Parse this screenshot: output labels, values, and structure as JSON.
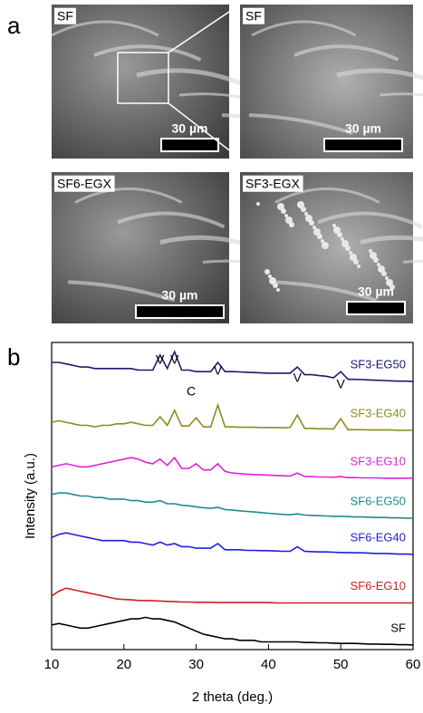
{
  "panel_a": {
    "label": "a",
    "images": [
      {
        "label": "SF",
        "scale_bar": "30 µm"
      },
      {
        "label": "SF",
        "scale_bar": "30 µm"
      },
      {
        "label": "SF6-EGX",
        "scale_bar": "30 µm"
      },
      {
        "label": "SF3-EGX",
        "scale_bar": "30 µm"
      }
    ]
  },
  "chart_data": {
    "type": "line",
    "panel_label": "b",
    "x_label": "2 theta (deg.)",
    "y_label": "Intensity (a.u.)",
    "xlim": [
      10,
      60
    ],
    "xticks": [
      10,
      20,
      30,
      40,
      50,
      60
    ],
    "ylim": [
      0,
      100
    ],
    "x": [
      10,
      11,
      12,
      13,
      14,
      15,
      16,
      17,
      18,
      19,
      20,
      21,
      22,
      23,
      24,
      25,
      26,
      27,
      28,
      29,
      30,
      31,
      32,
      33,
      34,
      35,
      36,
      37,
      38,
      39,
      40,
      41,
      42,
      43,
      44,
      45,
      46,
      47,
      48,
      49,
      50,
      51,
      52,
      53,
      54,
      55,
      56,
      57,
      58,
      59,
      60
    ],
    "series": [
      {
        "name": "SF3-EG50",
        "color": "#1a1a6e",
        "values": [
          93.5,
          93.5,
          93,
          92.5,
          92,
          92,
          91.5,
          91.5,
          91.5,
          91.5,
          91.5,
          91.5,
          91,
          91,
          91,
          95.9,
          91.5,
          97,
          91,
          91,
          90.5,
          90.5,
          90.5,
          93.5,
          90.5,
          90.5,
          90.4,
          90.3,
          90.2,
          90.1,
          90,
          90,
          90,
          90,
          92,
          89.5,
          89.5,
          89.2,
          89,
          88.5,
          90.5,
          88,
          88,
          87.9,
          87.8,
          87.7,
          87.6,
          87.5,
          87.4,
          87.4,
          87.3
        ]
      },
      {
        "name": "SF3-EG40",
        "color": "#8c8c1e",
        "values": [
          74,
          74.5,
          74,
          73.5,
          73,
          73,
          72.5,
          73,
          73,
          73.5,
          73.5,
          74,
          73.5,
          73,
          73,
          75.8,
          73,
          77.9,
          72.8,
          72.8,
          75.5,
          72.5,
          72.5,
          79.6,
          72.5,
          72.5,
          72.4,
          72.4,
          72.4,
          72.3,
          72.3,
          72.3,
          72.2,
          72.3,
          76.4,
          72,
          72,
          71.9,
          71.9,
          71.8,
          75.2,
          71.6,
          71.6,
          71.6,
          71.5,
          71.5,
          71.5,
          71.5,
          71.4,
          71.4,
          71.4
        ]
      },
      {
        "name": "SF3-EG10",
        "color": "#e020e0",
        "values": [
          59.5,
          60,
          60.5,
          60,
          59.5,
          59.5,
          60,
          60.5,
          61,
          61.5,
          62,
          62.5,
          62,
          61,
          60.5,
          62,
          60,
          62.5,
          59,
          59,
          60.5,
          58.5,
          58.5,
          60.5,
          58,
          57.5,
          57.3,
          57.1,
          57,
          56.9,
          56.8,
          56.7,
          56.6,
          56.5,
          57.5,
          56.4,
          56.3,
          56.2,
          56.2,
          56.1,
          56.3,
          56,
          56,
          55.9,
          55.9,
          55.9,
          55.8,
          55.8,
          55.8,
          55.8,
          55.8
        ]
      },
      {
        "name": "SF6-EG50",
        "color": "#1e8c8c",
        "values": [
          50.5,
          51,
          51,
          50.5,
          50,
          50,
          49.5,
          49.5,
          49,
          49,
          49,
          48.5,
          48.5,
          48,
          48,
          48.5,
          47.5,
          47.5,
          47,
          46.8,
          46.5,
          46.2,
          46,
          46.3,
          45.6,
          45.4,
          45.2,
          45,
          44.8,
          44.6,
          44.4,
          44.2,
          44,
          43.9,
          44.2,
          43.8,
          43.7,
          43.6,
          43.5,
          43.4,
          43.4,
          43.3,
          43.2,
          43.2,
          43.1,
          43,
          43,
          42.9,
          42.9,
          42.8,
          42.8
        ]
      },
      {
        "name": "SF6-EG40",
        "color": "#1e1ee0",
        "values": [
          36.5,
          37.5,
          38,
          37.5,
          37,
          36.5,
          36,
          35.5,
          35.5,
          35.5,
          35.5,
          35,
          35,
          34.5,
          34,
          35,
          34,
          34.5,
          33.5,
          33.5,
          33,
          33,
          33,
          34.5,
          32.5,
          32.5,
          32.5,
          32.3,
          32.3,
          32.2,
          32.2,
          32.1,
          32,
          32,
          33.5,
          32,
          31.9,
          31.8,
          31.8,
          31.7,
          31.6,
          31.6,
          31.5,
          31.5,
          31.4,
          31.3,
          31.3,
          31.2,
          31.1,
          31.1,
          31
        ]
      },
      {
        "name": "SF6-EG10",
        "color": "#d02020",
        "values": [
          17.5,
          19,
          20,
          19.5,
          19,
          18.5,
          18,
          17.5,
          17,
          16.5,
          16.3,
          16.2,
          16,
          16,
          15.9,
          15.8,
          15.7,
          15.6,
          15.5,
          15.5,
          15.4,
          15.4,
          15.4,
          15.3,
          15.3,
          15.3,
          15.3,
          15.3,
          15.3,
          15.3,
          15.3,
          15.2,
          15.2,
          15.2,
          15.2,
          15.2,
          15.2,
          15.2,
          15.2,
          15.2,
          15.2,
          15.2,
          15.2,
          15.2,
          15.2,
          15.2,
          15.2,
          15.2,
          15.2,
          15.2,
          15.2
        ]
      },
      {
        "name": "SF",
        "color": "#000000",
        "values": [
          8,
          8.5,
          8,
          7.5,
          7,
          7,
          7.5,
          8,
          8.5,
          9,
          9.5,
          10,
          10,
          10.5,
          10,
          10,
          9.5,
          9,
          8,
          7,
          6,
          5,
          4.5,
          4,
          3.5,
          3.5,
          3,
          3,
          3,
          2.5,
          2.5,
          2.5,
          2.5,
          2.5,
          2.5,
          2.3,
          2.3,
          2.2,
          2.2,
          2.1,
          2,
          2,
          2,
          1.9,
          1.8,
          1.8,
          1.7,
          1.7,
          1.6,
          1.6,
          1.5
        ]
      }
    ],
    "annotations": [
      {
        "text": "V",
        "x": 25
      },
      {
        "text": "V",
        "x": 27
      },
      {
        "text": "V",
        "x": 33
      },
      {
        "text": "V",
        "x": 44
      },
      {
        "text": "V",
        "x": 50
      },
      {
        "text": "C",
        "x": 29.3
      }
    ]
  }
}
